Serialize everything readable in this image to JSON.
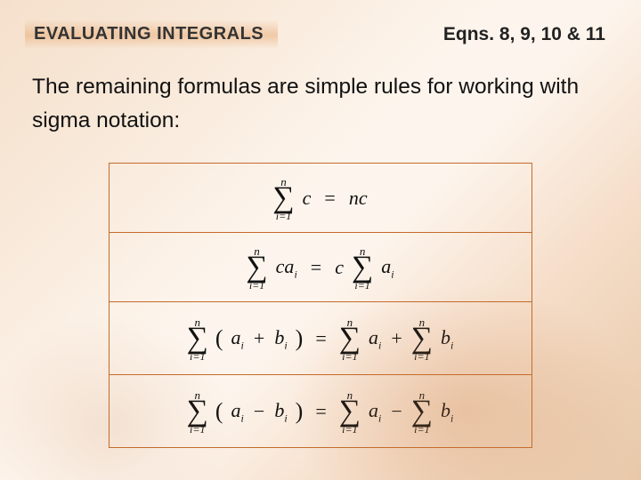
{
  "header": {
    "title": "EVALUATING INTEGRALS",
    "eqns_label": "Eqns. 8, 9, 10 & 11"
  },
  "intro_text": "The remaining formulas are simple rules for working with sigma notation:",
  "sigma": {
    "upper": "n",
    "lower": "i=1",
    "symbol": "∑"
  },
  "formulas": {
    "row1": {
      "lhs_term": "c",
      "eq": "=",
      "rhs": "nc"
    },
    "row2": {
      "lhs_term": "ca",
      "lhs_sub": "i",
      "eq": "=",
      "mid_coeff": "c",
      "rhs_term": "a",
      "rhs_sub": "i"
    },
    "row3": {
      "l_paren": "(",
      "a": "a",
      "a_sub": "i",
      "op": "+",
      "b": "b",
      "b_sub": "i",
      "r_paren": ")",
      "eq": "=",
      "ra": "a",
      "ra_sub": "i",
      "rop": "+",
      "rb": "b",
      "rb_sub": "i"
    },
    "row4": {
      "l_paren": "(",
      "a": "a",
      "a_sub": "i",
      "op": "−",
      "b": "b",
      "b_sub": "i",
      "r_paren": ")",
      "eq": "=",
      "ra": "a",
      "ra_sub": "i",
      "rop": "−",
      "rb": "b",
      "rb_sub": "i"
    }
  },
  "style": {
    "border_color": "#c46a2a",
    "title_font_size": 20,
    "intro_font_size": 24.5,
    "formula_font_size": 22,
    "sigma_size": 34
  }
}
